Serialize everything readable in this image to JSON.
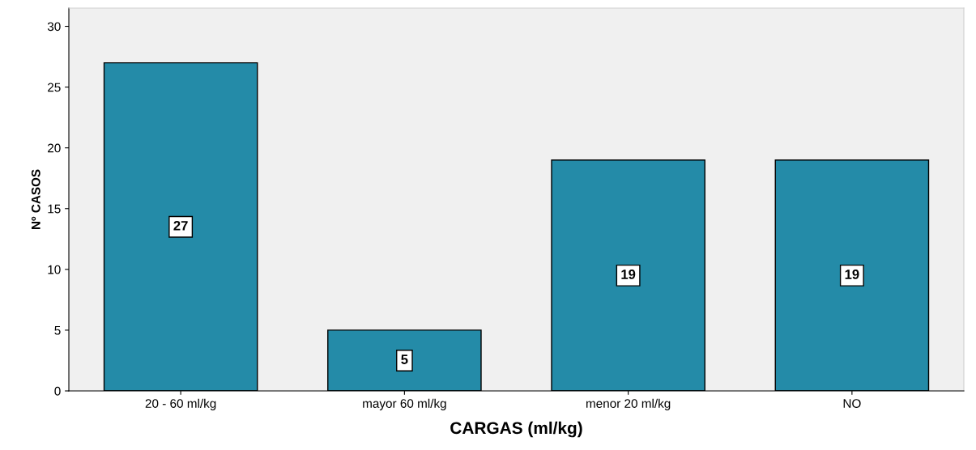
{
  "chart_data": {
    "type": "bar",
    "xlabel": "CARGAS (ml/kg)",
    "ylabel": "Nº CASOS",
    "categories": [
      "20 - 60 ml/kg",
      "mayor 60 ml/kg",
      "menor 20 ml/kg",
      "NO"
    ],
    "values": [
      27,
      5,
      19,
      19
    ],
    "color": "#248ba8",
    "ylim": [
      0,
      31.5
    ],
    "yticks": [
      0,
      5,
      10,
      15,
      20,
      25,
      30
    ],
    "grid": false,
    "data_labels": true
  }
}
